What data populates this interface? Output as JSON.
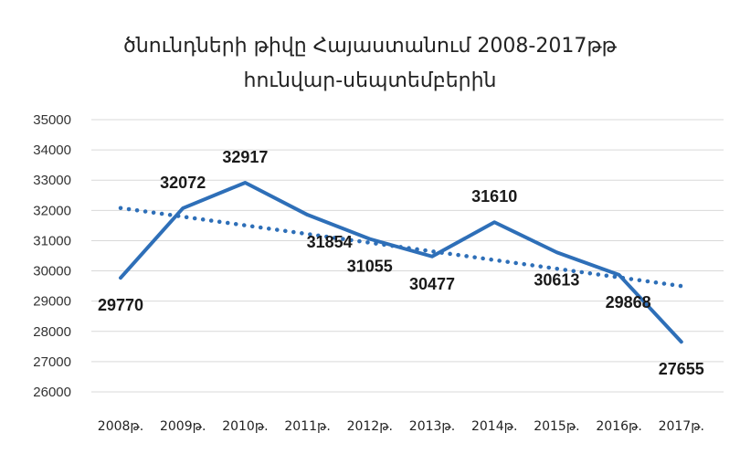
{
  "chart_data": {
    "type": "line",
    "title_lines": [
      "ծնունդների թիվը Հայաստանում 2008-2017թթ",
      "հունվար-սեպտեմբերին"
    ],
    "categories": [
      "2008թ.",
      "2009թ.",
      "2010թ.",
      "2011թ.",
      "2012թ.",
      "2013թ.",
      "2014թ.",
      "2015թ.",
      "2016թ.",
      "2017թ."
    ],
    "series": [
      {
        "values": [
          29770,
          32072,
          32917,
          31854,
          31055,
          30477,
          31610,
          30613,
          29868,
          27655
        ],
        "color": "#2e6fb8",
        "style": "solid"
      }
    ],
    "trendline": {
      "type": "linear",
      "color": "#2e6fb8",
      "style": "dotted"
    },
    "ylim": [
      26000,
      35000
    ],
    "yticks": [
      26000,
      27000,
      28000,
      29000,
      30000,
      31000,
      32000,
      33000,
      34000,
      35000
    ],
    "grid": true,
    "legend": false
  }
}
